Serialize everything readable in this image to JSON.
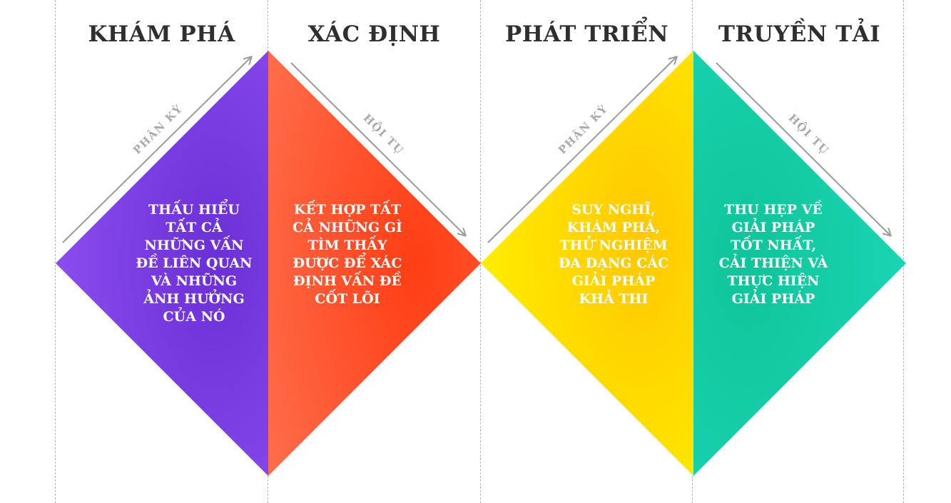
{
  "headings": [
    "KHÁM PHÁ",
    "XÁC ĐỊNH",
    "PHÁT TRIỂN",
    "TRUYỀN TẢI"
  ],
  "descriptions": [
    "THẤU HIỂU\nTẤT CẢ\nNHỮNG VẤN\nĐỀ LIÊN QUAN\nVÀ NHỮNG\nẢNH HƯỞNG\nCỦA NÓ",
    "KẾT HỢP TẤT\nCẢ NHỮNG GÌ\nTÌM THẤY\nĐƯỢC ĐỂ XÁC\nĐỊNH VẤN ĐỀ\nCỐT LÕI",
    "SUY NGHĨ,\nKHÁM PHÁ,\nTHỬ NGHIỆM\nĐA DẠNG CÁC\nGIẢI PHÁP\nKHẢ THI",
    "THU HẸP VỀ\nGIẢI PHÁP\nTỐT NHẤT,\nCẢI THIỆN VÀ\nTHỰC HIỆN\nGIẢI PHÁP"
  ],
  "arrow_labels": [
    "PHÂN KỲ",
    "HỘI TỤ",
    "PHÂN KỲ",
    "HỘI TỤ"
  ],
  "colors": {
    "purple": "#7f3fe6",
    "orange": "#ff5530",
    "yellow": "#ffd60a",
    "teal": "#16cfa8",
    "arrow": "#9a9a9a",
    "divider": "#b4b4b4"
  }
}
